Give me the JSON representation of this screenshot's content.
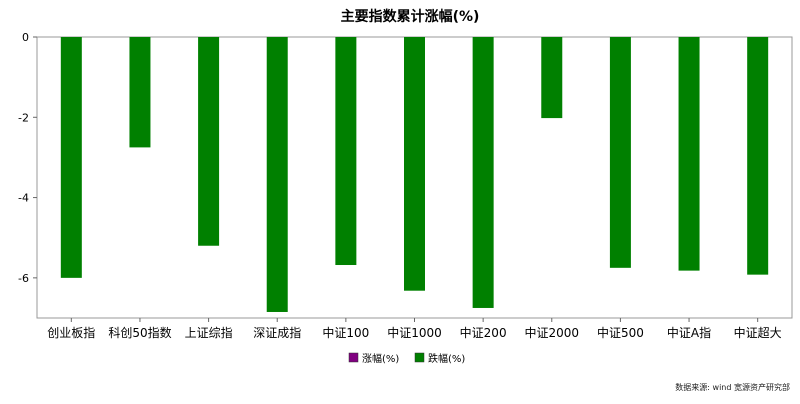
{
  "chart_data": {
    "type": "bar",
    "title": "主要指数累计涨幅(%)",
    "xlabel": "",
    "ylabel": "",
    "categories": [
      "创业板指",
      "科创50指数",
      "上证综指",
      "深证成指",
      "中证100",
      "中证1000",
      "中证200",
      "中证2000",
      "中证500",
      "中证A指",
      "中证超大"
    ],
    "values": [
      -6.0,
      -2.75,
      -5.2,
      -6.85,
      -5.68,
      -6.32,
      -6.75,
      -2.02,
      -5.75,
      -5.82,
      -5.92
    ],
    "ylim": [
      -7,
      0
    ],
    "yticks": [
      0,
      -2,
      -4,
      -6
    ],
    "grid": false,
    "legend_position": "bottom-center",
    "series": [
      {
        "name": "涨幅(%)",
        "color": "#800080"
      },
      {
        "name": "跌幅(%)",
        "color": "#008000"
      }
    ],
    "source": "数据来源:  wind 宽源资产研究部"
  }
}
